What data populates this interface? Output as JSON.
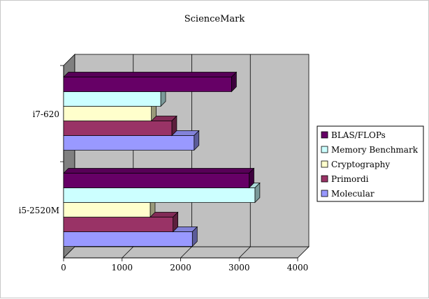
{
  "chart_data": {
    "type": "bar",
    "orientation": "horizontal",
    "title": "ScienceMark",
    "categories": [
      "i5-2520M",
      "i7-620"
    ],
    "series": [
      {
        "name": "Molecular",
        "color": "#9999ff",
        "values": [
          2200,
          2230
        ]
      },
      {
        "name": "Primordi",
        "color": "#993366",
        "values": [
          1870,
          1850
        ]
      },
      {
        "name": "Cryptography",
        "color": "#ffffcc",
        "values": [
          1480,
          1500
        ]
      },
      {
        "name": "Memory Benchmark",
        "color": "#ccffff",
        "values": [
          3270,
          1660
        ]
      },
      {
        "name": "BLAS/FLOPs",
        "color": "#660066",
        "values": [
          3170,
          2870
        ]
      }
    ],
    "xlim": [
      0,
      4000
    ],
    "xticks": [
      "0",
      "1000",
      "2000",
      "3000",
      "4000"
    ],
    "grid": true,
    "legend_position": "right",
    "plot_background": "#c0c0c0",
    "wall_color": "#808080"
  }
}
